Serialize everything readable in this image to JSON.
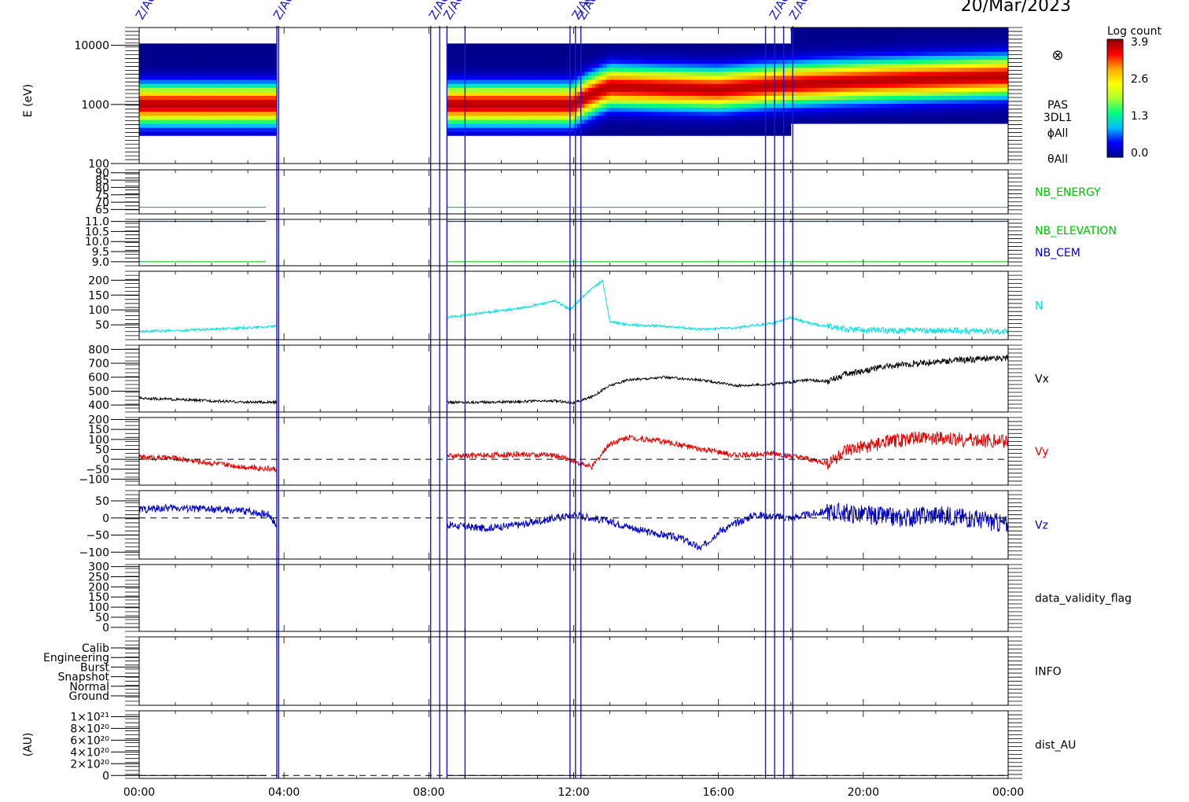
{
  "header": {
    "date": "20/Mar/2023",
    "event_markers": [
      "Z/AC",
      "Z/AC",
      "Z/AC",
      "Z/AC",
      "Z/AC",
      "Z/AC",
      "Z/AC",
      "Z/AC"
    ]
  },
  "colorbar": {
    "title": "Log count",
    "ticks": [
      "3.9",
      "2.6",
      "1.3",
      "0.0"
    ],
    "colors": [
      "#00008b",
      "#0000ff",
      "#00bfff",
      "#00ff7f",
      "#adff2f",
      "#ffff00",
      "#ffa500",
      "#ff0000",
      "#8b0000"
    ]
  },
  "spectrogram": {
    "ylabel": "E (eV)",
    "yticks": [
      "10000",
      "1000",
      "100"
    ],
    "side_labels": [
      "PAS",
      "3DL1",
      "ϕAll",
      "θAll"
    ],
    "symbol": "⊗"
  },
  "x_axis": {
    "ticks": [
      "00:00",
      "04:00",
      "08:00",
      "12:00",
      "16:00",
      "20:00",
      "00:00"
    ],
    "range_hours": [
      0,
      24
    ]
  },
  "panels": [
    {
      "label": "NB_ENERGY",
      "label_color": "#00c000",
      "ticks": [
        "90",
        "85",
        "80",
        "75",
        "70",
        "65"
      ],
      "ylim": [
        62,
        92
      ]
    },
    {
      "label": "NB_ELEVATION",
      "label_color": "#00c000",
      "label2": "NB_CEM",
      "label2_color": "#0000c0",
      "ticks": [
        "11.0",
        "10.5",
        "10.0",
        "9.5",
        "9.0"
      ],
      "ylim": [
        8.8,
        11.1
      ]
    },
    {
      "label": "N",
      "label_color": "#00e0e0",
      "ticks": [
        "200",
        "150",
        "100",
        "50"
      ],
      "ylim": [
        0,
        230
      ]
    },
    {
      "label": "Vx",
      "label_color": "#000000",
      "ticks": [
        "800",
        "700",
        "600",
        "500",
        "400"
      ],
      "ylim": [
        350,
        830
      ]
    },
    {
      "label": "Vy",
      "label_color": "#e00000",
      "ticks": [
        "200",
        "150",
        "100",
        "50",
        "0",
        "−50",
        "−100"
      ],
      "ylim": [
        -130,
        210
      ]
    },
    {
      "label": "Vz",
      "label_color": "#0000c0",
      "ticks": [
        "50",
        "0",
        "−50",
        "−100"
      ],
      "ylim": [
        -120,
        80
      ]
    },
    {
      "label": "data_validity_flag",
      "label_color": "#000000",
      "ticks": [
        "300",
        "250",
        "200",
        "150",
        "100",
        "50",
        "0"
      ],
      "ylim": [
        -20,
        310
      ]
    },
    {
      "label": "INFO",
      "label_color": "#000000",
      "ticks": [
        "Calib",
        "Engineering",
        "Burst",
        "Snapshot",
        "Normal",
        "Ground"
      ]
    },
    {
      "label": "dist_AU",
      "label_color": "#000000",
      "ylabel": "(AU)",
      "ticks": [
        "1×10²¹",
        "8×10²⁰",
        "6×10²⁰",
        "4×10²⁰",
        "2×10²⁰",
        "0"
      ],
      "ylim": [
        -0.05,
        1.1
      ]
    }
  ],
  "chart_data": {
    "type": "line",
    "x_unit": "hours UT on 20/Mar/2023",
    "data_gaps_hours": [
      [
        3.8,
        8.5
      ]
    ],
    "event_line_hours": [
      3.8,
      3.85,
      8.05,
      8.3,
      8.5,
      9.0,
      11.9,
      12.05,
      12.2,
      17.3,
      17.55,
      17.8,
      18.05
    ],
    "spectrogram": {
      "type": "heatmap",
      "z_label": "Log count",
      "z_range": [
        0.0,
        3.9
      ],
      "y_scale": "log",
      "ylim": [
        100,
        20000
      ],
      "coverage_hours": [
        [
          0,
          3.8
        ],
        [
          8.5,
          24.0
        ]
      ],
      "peak_energy_ev": {
        "x": [
          0,
          3.8,
          8.5,
          12.0,
          13.0,
          16.0,
          18.0,
          20.0,
          24.0
        ],
        "y": [
          1000,
          1000,
          1000,
          1000,
          2000,
          1800,
          2200,
          2500,
          3000
        ]
      }
    },
    "series": [
      {
        "name": "NB_ENERGY",
        "color": "#00c000",
        "x": [
          0,
          3.8,
          8.5,
          24
        ],
        "y": [
          66.5,
          66.5,
          66.5,
          66.5
        ]
      },
      {
        "name": "NB_ELEVATION",
        "color": "#00c000",
        "x": [
          0,
          3.8,
          8.5,
          24
        ],
        "y": [
          9.0,
          9.0,
          9.0,
          9.0
        ]
      },
      {
        "name": "NB_CEM",
        "color": "#0000c0",
        "x": [
          0,
          3.8,
          8.5,
          24
        ],
        "y": [
          11.0,
          11.0,
          11.0,
          11.0
        ]
      },
      {
        "name": "N",
        "color": "#00e0e0",
        "x": [
          0,
          1,
          2,
          3,
          3.8,
          8.5,
          9.5,
          10.5,
          11.5,
          11.9,
          12.3,
          12.8,
          13.0,
          13.5,
          14.5,
          15.5,
          16.5,
          17.5,
          18.0,
          18.5,
          19.5,
          21.0,
          22.5,
          24.0
        ],
        "y": [
          28,
          30,
          35,
          40,
          45,
          75,
          90,
          105,
          130,
          100,
          150,
          200,
          60,
          50,
          45,
          35,
          40,
          55,
          75,
          55,
          35,
          30,
          30,
          28
        ]
      },
      {
        "name": "Vx",
        "color": "#000000",
        "x": [
          0,
          1,
          2,
          3,
          3.8,
          8.5,
          9.5,
          10.5,
          11.5,
          12.0,
          12.5,
          13.0,
          13.5,
          14.5,
          15.5,
          16.5,
          17.5,
          18.5,
          19.0,
          19.5,
          20.5,
          21.5,
          22.5,
          24.0
        ],
        "y": [
          450,
          440,
          430,
          420,
          420,
          420,
          420,
          425,
          430,
          415,
          460,
          540,
          580,
          600,
          580,
          540,
          550,
          580,
          570,
          620,
          670,
          700,
          720,
          740
        ]
      },
      {
        "name": "Vy",
        "color": "#e00000",
        "x": [
          0,
          1,
          2,
          3,
          3.8,
          8.5,
          9.5,
          10.5,
          11.5,
          12.0,
          12.5,
          13.0,
          13.5,
          14.5,
          15.5,
          16.5,
          17.5,
          18.5,
          19.0,
          19.5,
          20.5,
          21.5,
          22.5,
          24.0
        ],
        "y": [
          10,
          5,
          -20,
          -40,
          -50,
          15,
          20,
          25,
          20,
          -10,
          -40,
          80,
          110,
          90,
          50,
          20,
          30,
          0,
          -20,
          40,
          80,
          110,
          100,
          90
        ]
      },
      {
        "name": "Vz",
        "color": "#0000c0",
        "x": [
          0,
          1,
          2,
          3,
          3.6,
          3.8,
          8.5,
          9.5,
          10.5,
          11.5,
          12.0,
          12.5,
          13.0,
          14.0,
          15.0,
          15.5,
          16.0,
          17.0,
          18.0,
          19.0,
          20.0,
          21.0,
          22.0,
          23.0,
          24.0
        ],
        "y": [
          25,
          30,
          25,
          20,
          10,
          -25,
          -20,
          -30,
          -20,
          0,
          10,
          0,
          -10,
          -40,
          -60,
          -90,
          -40,
          10,
          0,
          20,
          10,
          0,
          10,
          0,
          -20
        ]
      },
      {
        "name": "dist_AU",
        "color": "#000000",
        "x": [
          0,
          24
        ],
        "y": [
          0,
          0
        ]
      }
    ]
  }
}
